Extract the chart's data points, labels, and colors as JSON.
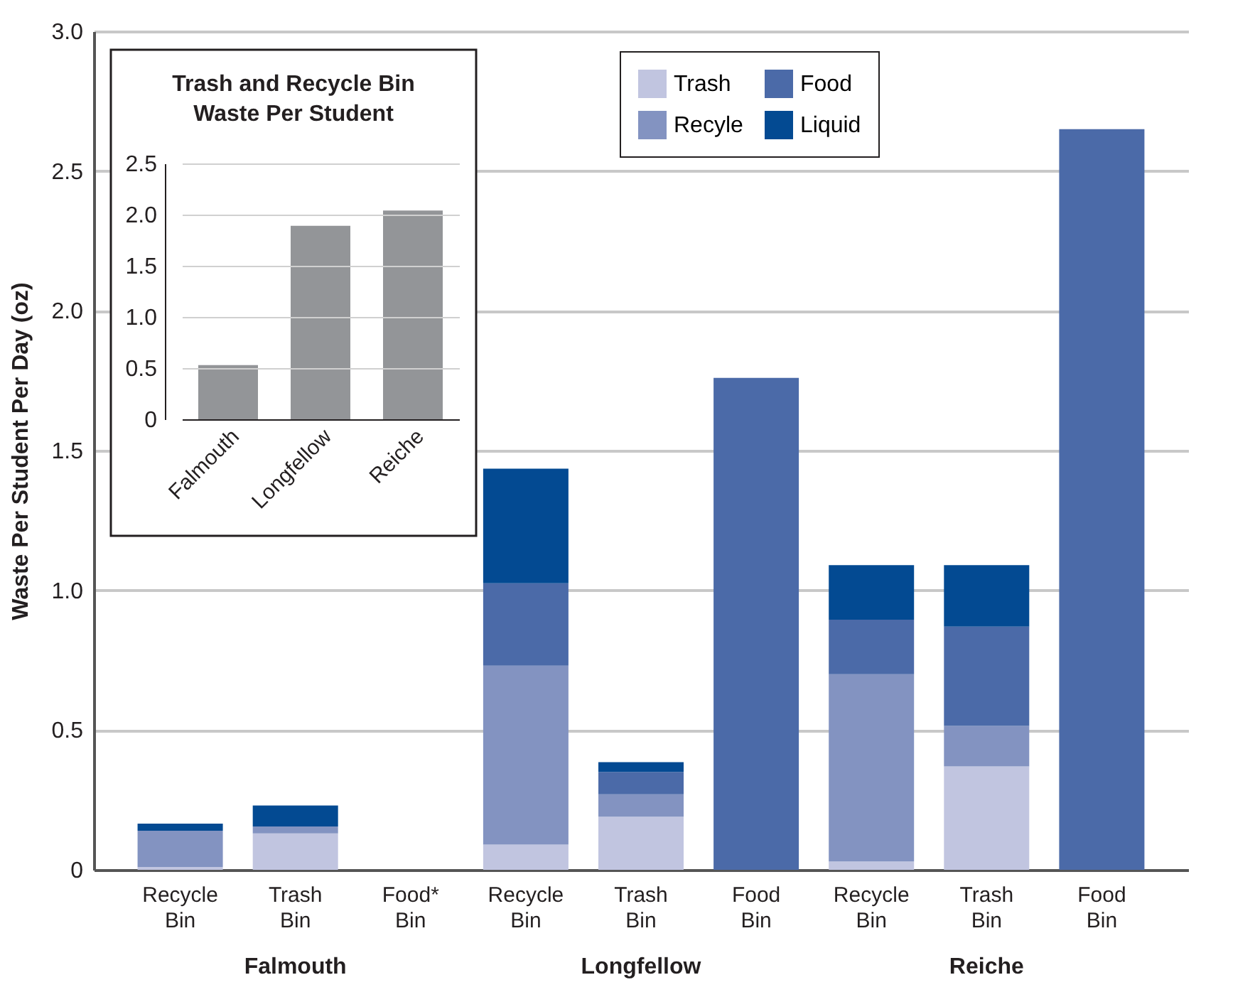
{
  "chart_data": [
    {
      "type": "bar",
      "stacked": true,
      "ylabel": "Waste Per Student Per Day (oz)",
      "categories": [
        "Recycle Bin",
        "Trash Bin",
        "Food* Bin",
        "Recycle Bin",
        "Trash Bin",
        "Food Bin",
        "Recycle Bin",
        "Trash Bin",
        "Food Bin"
      ],
      "series": [
        {
          "name": "Trash",
          "color": "#c1c5e0",
          "values": [
            0.01,
            0.13,
            null,
            0.09,
            0.19,
            null,
            0.03,
            0.37,
            null
          ]
        },
        {
          "name": "Recyle",
          "color": "#8393c1",
          "values": [
            0.13,
            0.025,
            null,
            0.64,
            0.08,
            null,
            0.67,
            0.145,
            null
          ]
        },
        {
          "name": "Food",
          "color": "#4b6aa8",
          "values": [
            null,
            null,
            null,
            0.295,
            0.08,
            1.76,
            0.195,
            0.355,
            2.65
          ]
        },
        {
          "name": "Liquid",
          "color": "#034a92",
          "values": [
            0.025,
            0.075,
            null,
            0.41,
            0.035,
            null,
            0.195,
            0.22,
            null
          ]
        }
      ],
      "ylim": [
        0,
        3
      ],
      "yticks": [
        0,
        0.5,
        {
          "value": 1,
          "label": "1.0"
        },
        1.5,
        {
          "value": 2,
          "label": "2.0"
        },
        2.5,
        {
          "value": 3,
          "label": "3.0"
        }
      ],
      "grid": "y",
      "legend": "top",
      "annotations": [
        "Falmouth",
        "Longfellow",
        "Reiche"
      ]
    },
    {
      "type": "bar",
      "title": "Trash and Recycle Bin Waste Per Student",
      "categories": [
        "Falmouth",
        "Longfellow",
        "Reiche"
      ],
      "values": [
        0.53,
        1.89,
        2.04
      ],
      "color": "#939598",
      "ylim": [
        0,
        2.5
      ],
      "yticks": [
        0,
        0.5,
        {
          "value": 1,
          "label": "1.0"
        },
        1.5,
        {
          "value": 2,
          "label": "2.0"
        },
        2.5
      ],
      "grid": "y"
    }
  ]
}
